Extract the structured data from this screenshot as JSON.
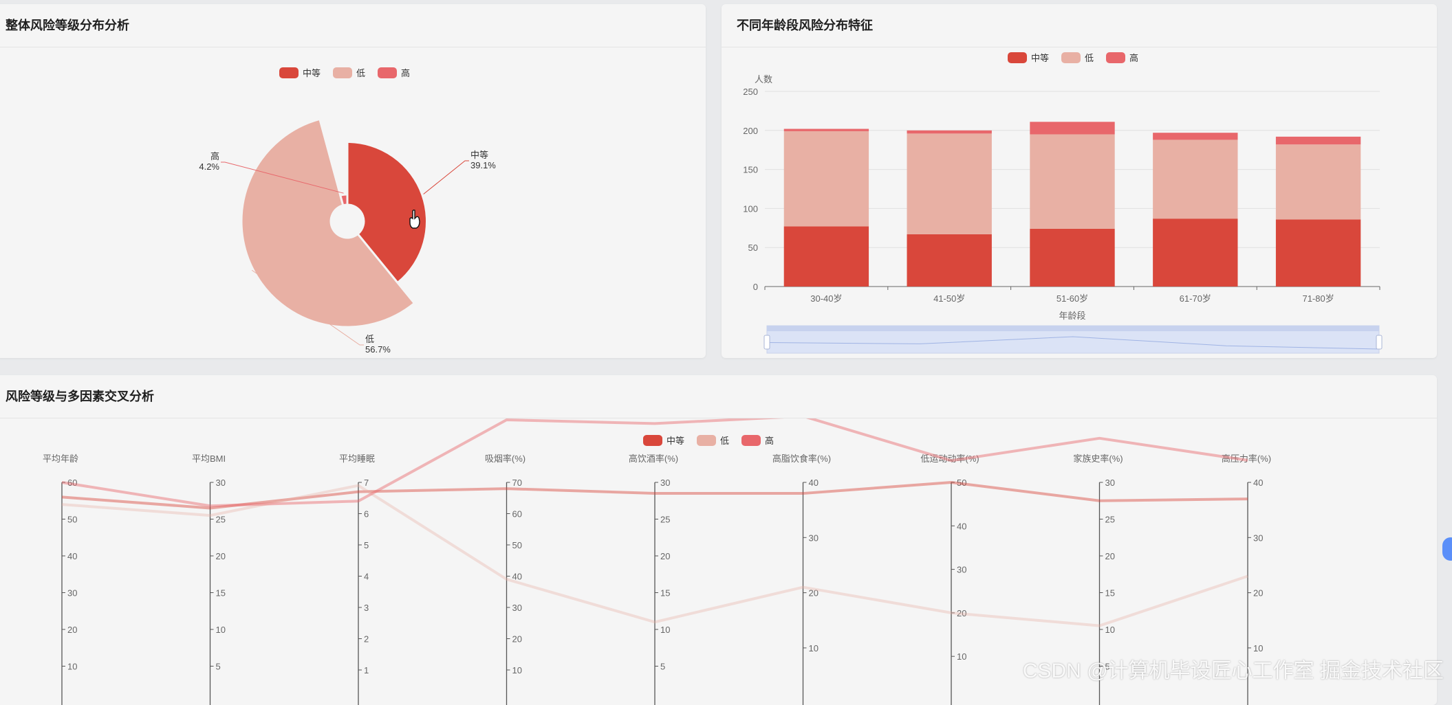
{
  "colors": {
    "medium": "#d9473b",
    "low": "#e8b0a4",
    "high": "#e8676b"
  },
  "panels": {
    "pie": {
      "title": "整体风险等级分布分析"
    },
    "bar": {
      "title": "不同年龄段风险分布特征"
    },
    "parallel": {
      "title": "风险等级与多因素交叉分析"
    }
  },
  "legend": [
    "中等",
    "低",
    "高"
  ],
  "pie_labels": [
    {
      "name": "中等",
      "pct": "39.1%"
    },
    {
      "name": "低",
      "pct": "56.7%"
    },
    {
      "name": "高",
      "pct": "4.2%"
    }
  ],
  "watermark": "CSDN @计算机毕设匠心工作室  掘金技术社区",
  "chart_data": [
    {
      "type": "pie",
      "rose": true,
      "series": [
        {
          "name": "中等",
          "value": 39.1
        },
        {
          "name": "低",
          "value": 56.7
        },
        {
          "name": "高",
          "value": 4.2
        }
      ]
    },
    {
      "type": "bar",
      "stacked": true,
      "categories": [
        "30-40岁",
        "41-50岁",
        "51-60岁",
        "61-70岁",
        "71-80岁"
      ],
      "series": [
        {
          "name": "中等",
          "values": [
            77,
            67,
            74,
            87,
            86
          ]
        },
        {
          "name": "低",
          "values": [
            122,
            129,
            121,
            101,
            96
          ]
        },
        {
          "name": "高",
          "values": [
            3,
            4,
            16,
            9,
            10
          ]
        }
      ],
      "ylabel": "人数",
      "xlabel": "年龄段",
      "ylim": [
        0,
        250
      ],
      "yticks": [
        0,
        50,
        100,
        150,
        200,
        250
      ],
      "grid": true,
      "legend": "top-center",
      "data_zoom": true
    },
    {
      "type": "parallel",
      "axes": [
        {
          "name": "平均年龄",
          "min": 0,
          "max": 60,
          "ticks": [
            10,
            20,
            30,
            40,
            50,
            60
          ]
        },
        {
          "name": "平均BMI",
          "min": 0,
          "max": 30,
          "ticks": [
            5,
            10,
            15,
            20,
            25,
            30
          ]
        },
        {
          "name": "平均睡眠",
          "min": 0,
          "max": 7,
          "ticks": [
            1,
            2,
            3,
            4,
            5,
            6,
            7
          ]
        },
        {
          "name": "吸烟率(%)",
          "min": 0,
          "max": 70,
          "ticks": [
            10,
            20,
            30,
            40,
            50,
            60,
            70
          ]
        },
        {
          "name": "高饮酒率(%)",
          "min": 0,
          "max": 30,
          "ticks": [
            5,
            10,
            15,
            20,
            25,
            30
          ]
        },
        {
          "name": "高脂饮食率(%)",
          "min": 0,
          "max": 40,
          "ticks": [
            10,
            20,
            30,
            40
          ]
        },
        {
          "name": "低运动动率(%)",
          "min": 0,
          "max": 50,
          "ticks": [
            10,
            20,
            30,
            40,
            50
          ]
        },
        {
          "name": "家族史率(%)",
          "min": 0,
          "max": 30,
          "ticks": [
            5,
            10,
            15,
            20,
            25,
            30
          ]
        },
        {
          "name": "高压力率(%)",
          "min": 0,
          "max": 40,
          "ticks": [
            10,
            20,
            30,
            40
          ]
        }
      ],
      "series": [
        {
          "name": "中等",
          "values": [
            56,
            26.5,
            6.7,
            68,
            28.5,
            38,
            50,
            27.5,
            37
          ]
        },
        {
          "name": "低",
          "values": [
            54,
            25.5,
            6.9,
            39,
            11,
            21,
            20,
            10.5,
            23
          ]
        },
        {
          "name": "高",
          "values": [
            60,
            26.8,
            6.4,
            90,
            38,
            52,
            55,
            36,
            44
          ]
        }
      ],
      "legend": "top-center"
    }
  ]
}
